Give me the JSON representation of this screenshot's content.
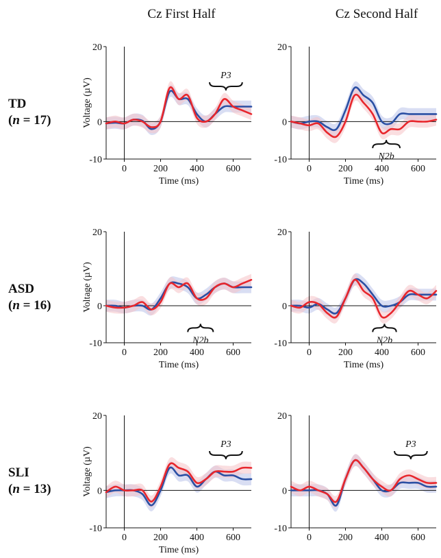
{
  "columns": [
    "Cz First Half",
    "Cz Second Half"
  ],
  "rows": [
    {
      "group": "TD",
      "n_label": "(n = 17)",
      "n_prefix": "(",
      "n_var": "n",
      "n_rest": " = 17)"
    },
    {
      "group": "ASD",
      "n_label": "(n = 16)",
      "n_prefix": "(",
      "n_var": "n",
      "n_rest": " = 16)"
    },
    {
      "group": "SLI",
      "n_label": "(n = 13)",
      "n_prefix": "(",
      "n_var": "n",
      "n_rest": " = 13)"
    }
  ],
  "colors": {
    "blue": "#2a4fa3",
    "red": "#e8262c",
    "blue_band": "#b9c3ea",
    "red_band": "#f6c3c6"
  },
  "chart_data": [
    {
      "type": "line",
      "row": "TD",
      "column": "Cz First Half",
      "xlabel": "Time (ms)",
      "ylabel": "Voltage (µV)",
      "xlim": [
        -100,
        700
      ],
      "ylim": [
        -10,
        20
      ],
      "xticks": [
        0,
        200,
        400,
        600
      ],
      "yticks": [
        -10,
        0,
        20
      ],
      "x": [
        -100,
        -50,
        0,
        50,
        100,
        150,
        200,
        250,
        300,
        350,
        400,
        450,
        500,
        550,
        600,
        650,
        700
      ],
      "series": [
        {
          "color": "blue",
          "values": [
            -0.5,
            -0.3,
            -0.5,
            0.5,
            0.2,
            -2,
            0,
            8,
            6,
            6,
            2,
            0,
            2,
            4,
            4,
            4,
            4
          ]
        },
        {
          "color": "red",
          "values": [
            -0.5,
            0,
            -0.5,
            0.5,
            0,
            -1.5,
            0,
            9,
            6,
            7,
            1,
            0,
            2,
            6,
            4,
            3,
            2
          ]
        }
      ],
      "annotations": [
        {
          "label": "P3",
          "x_range": [
            470,
            650
          ],
          "position": "above"
        }
      ]
    },
    {
      "type": "line",
      "row": "TD",
      "column": "Cz Second Half",
      "xlabel": "Time (ms)",
      "ylabel": "",
      "xlim": [
        -100,
        700
      ],
      "ylim": [
        -10,
        20
      ],
      "xticks": [
        0,
        200,
        400,
        600
      ],
      "yticks": [
        -10,
        0,
        20
      ],
      "x": [
        -100,
        -50,
        0,
        50,
        100,
        150,
        200,
        250,
        300,
        350,
        400,
        450,
        500,
        550,
        600,
        650,
        700
      ],
      "series": [
        {
          "color": "blue",
          "values": [
            0,
            -0.5,
            0,
            0,
            -1.5,
            -2,
            3,
            9,
            7,
            5,
            0,
            -0.5,
            2,
            2,
            2,
            2,
            2
          ]
        },
        {
          "color": "red",
          "values": [
            0,
            -0.5,
            -1,
            -0.5,
            -3,
            -4,
            0,
            7,
            5,
            2,
            -3,
            -2,
            -2,
            0,
            0,
            0,
            0.5
          ]
        }
      ],
      "annotations": [
        {
          "label": "N2b",
          "x_range": [
            350,
            500
          ],
          "position": "below"
        }
      ]
    },
    {
      "type": "line",
      "row": "ASD",
      "column": "Cz First Half",
      "xlabel": "Time (ms)",
      "ylabel": "Voltage (µV)",
      "xlim": [
        -100,
        700
      ],
      "ylim": [
        -10,
        20
      ],
      "xticks": [
        0,
        200,
        400,
        600
      ],
      "yticks": [
        -10,
        0,
        20
      ],
      "x": [
        -100,
        -50,
        0,
        50,
        100,
        150,
        200,
        250,
        300,
        350,
        400,
        450,
        500,
        550,
        600,
        650,
        700
      ],
      "series": [
        {
          "color": "blue",
          "values": [
            0,
            0,
            -0.5,
            0,
            0,
            -1,
            2,
            6,
            6,
            5,
            2,
            3,
            5,
            6,
            5,
            5,
            5
          ]
        },
        {
          "color": "red",
          "values": [
            0,
            -0.5,
            -0.5,
            0,
            1,
            -1,
            1,
            6,
            5,
            6,
            2,
            2,
            5,
            6,
            5,
            6,
            7
          ]
        }
      ],
      "annotations": [
        {
          "label": "N2b",
          "x_range": [
            350,
            490
          ],
          "position": "below"
        }
      ]
    },
    {
      "type": "line",
      "row": "ASD",
      "column": "Cz Second Half",
      "xlabel": "Time (ms)",
      "ylabel": "",
      "xlim": [
        -100,
        700
      ],
      "ylim": [
        -10,
        20
      ],
      "xticks": [
        0,
        200,
        400,
        600
      ],
      "yticks": [
        -10,
        0,
        20
      ],
      "x": [
        -100,
        -50,
        0,
        50,
        100,
        150,
        200,
        250,
        300,
        350,
        400,
        450,
        500,
        550,
        600,
        650,
        700
      ],
      "series": [
        {
          "color": "blue",
          "values": [
            0,
            0,
            -0.5,
            0.5,
            -1,
            -2,
            2,
            7,
            6,
            3,
            0,
            0,
            1,
            3,
            3,
            3,
            3
          ]
        },
        {
          "color": "red",
          "values": [
            0,
            -0.5,
            1,
            0.5,
            -2,
            -3,
            2,
            7,
            4,
            2,
            -3,
            -2,
            1,
            4,
            3,
            2,
            4
          ]
        }
      ],
      "annotations": [
        {
          "label": "N2b",
          "x_range": [
            350,
            480
          ],
          "position": "below"
        }
      ]
    },
    {
      "type": "line",
      "row": "SLI",
      "column": "Cz First Half",
      "xlabel": "Time (ms)",
      "ylabel": "Voltage (µV)",
      "xlim": [
        -100,
        700
      ],
      "ylim": [
        -10,
        20
      ],
      "xticks": [
        0,
        200,
        400,
        600
      ],
      "yticks": [
        -10,
        0,
        20
      ],
      "x": [
        -100,
        -50,
        0,
        50,
        100,
        150,
        200,
        250,
        300,
        350,
        400,
        450,
        500,
        550,
        600,
        650,
        700
      ],
      "series": [
        {
          "color": "blue",
          "values": [
            -0.5,
            0,
            0,
            0,
            -1,
            -4,
            0,
            6,
            4,
            4,
            1,
            3,
            5,
            4,
            4,
            3,
            3
          ]
        },
        {
          "color": "red",
          "values": [
            -0.5,
            1,
            0,
            0,
            0,
            -3,
            1,
            7,
            6,
            5,
            2,
            3,
            5,
            5,
            5,
            6,
            6
          ]
        }
      ],
      "annotations": [
        {
          "label": "P3",
          "x_range": [
            470,
            650
          ],
          "position": "above"
        }
      ]
    },
    {
      "type": "line",
      "row": "SLI",
      "column": "Cz Second Half",
      "xlabel": "",
      "ylabel": "",
      "xlim": [
        -100,
        700
      ],
      "ylim": [
        -10,
        20
      ],
      "xticks": [
        0,
        200,
        400,
        600
      ],
      "yticks": [
        -10,
        0,
        20
      ],
      "x": [
        -100,
        -50,
        0,
        50,
        100,
        150,
        200,
        250,
        300,
        350,
        400,
        450,
        500,
        550,
        600,
        650,
        700
      ],
      "series": [
        {
          "color": "blue",
          "values": [
            0,
            0,
            0,
            0,
            -1,
            -4,
            3,
            8,
            6,
            3,
            0,
            0,
            2,
            2,
            2,
            1,
            1
          ]
        },
        {
          "color": "red",
          "values": [
            1,
            0,
            1,
            0,
            -1,
            -3,
            3,
            8,
            6,
            3,
            1,
            0,
            3,
            4,
            3,
            2,
            2
          ]
        }
      ],
      "annotations": [
        {
          "label": "P3",
          "x_range": [
            470,
            650
          ],
          "position": "above"
        }
      ]
    }
  ]
}
